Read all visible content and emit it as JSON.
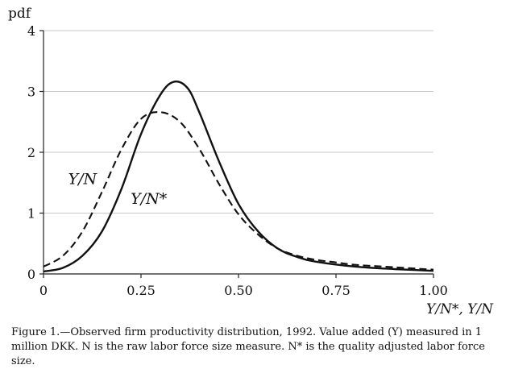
{
  "chart_data": {
    "type": "line",
    "ylabel": "pdf",
    "xlabel": "Y/N*, Y/N",
    "xlim": [
      0,
      1.0
    ],
    "ylim": [
      0,
      4
    ],
    "grid": "horizontal",
    "xticks": [
      0,
      0.25,
      0.5,
      0.75,
      1.0
    ],
    "xtick_labels": [
      "0",
      "0.25",
      "0.50",
      "0.75",
      "1.00"
    ],
    "yticks": [
      0,
      1,
      2,
      3,
      4
    ],
    "ytick_labels": [
      "0",
      "1",
      "2",
      "3",
      "4"
    ],
    "series": [
      {
        "name": "Y/N",
        "style": "dashed",
        "x": [
          0.0,
          0.05,
          0.1,
          0.15,
          0.2,
          0.25,
          0.3,
          0.35,
          0.4,
          0.45,
          0.5,
          0.55,
          0.6,
          0.65,
          0.7,
          0.75,
          0.8,
          0.9,
          1.0
        ],
        "values": [
          0.12,
          0.3,
          0.7,
          1.35,
          2.05,
          2.55,
          2.66,
          2.5,
          2.05,
          1.48,
          0.98,
          0.65,
          0.42,
          0.3,
          0.23,
          0.19,
          0.15,
          0.11,
          0.07
        ]
      },
      {
        "name": "Y/N*",
        "style": "solid",
        "x": [
          0.0,
          0.05,
          0.1,
          0.15,
          0.2,
          0.25,
          0.3,
          0.335,
          0.37,
          0.4,
          0.45,
          0.5,
          0.55,
          0.6,
          0.65,
          0.7,
          0.8,
          0.9,
          1.0
        ],
        "values": [
          0.04,
          0.1,
          0.3,
          0.7,
          1.4,
          2.3,
          2.95,
          3.16,
          3.05,
          2.65,
          1.85,
          1.15,
          0.7,
          0.42,
          0.28,
          0.2,
          0.12,
          0.08,
          0.05
        ]
      }
    ],
    "annotations": [
      {
        "text": "Y/N",
        "x": 0.1,
        "y": 1.48
      },
      {
        "text": "Y/N*",
        "x": 0.27,
        "y": 1.15
      }
    ]
  },
  "caption": {
    "text": "Figure 1.—Observed firm productivity distribution, 1992. Value added (Y) measured in 1 million DKK. N is the raw labor force size measure. N* is the quality adjusted labor force size."
  }
}
